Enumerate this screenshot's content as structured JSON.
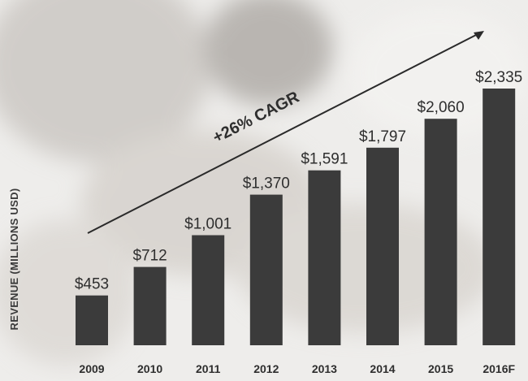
{
  "chart_data": {
    "type": "bar",
    "title": "",
    "xlabel": "",
    "ylabel": "REVENUE (MILLIONS USD)",
    "categories": [
      "2009",
      "2010",
      "2011",
      "2012",
      "2013",
      "2014",
      "2015",
      "2016F"
    ],
    "values": [
      453,
      712,
      1001,
      1370,
      1591,
      1797,
      2060,
      2335
    ],
    "value_labels": [
      "$453",
      "$712",
      "$1,001",
      "$1,370",
      "$1,591",
      "$1,797",
      "$2,060",
      "$2,335"
    ],
    "annotation": "+26% CAGR",
    "ylim": [
      0,
      2335
    ],
    "grid": false,
    "axis_ticks_shown": false,
    "colors": {
      "bar": "#3b3b3b",
      "text": "#2e2e2e",
      "background": "#ecebe9"
    }
  }
}
